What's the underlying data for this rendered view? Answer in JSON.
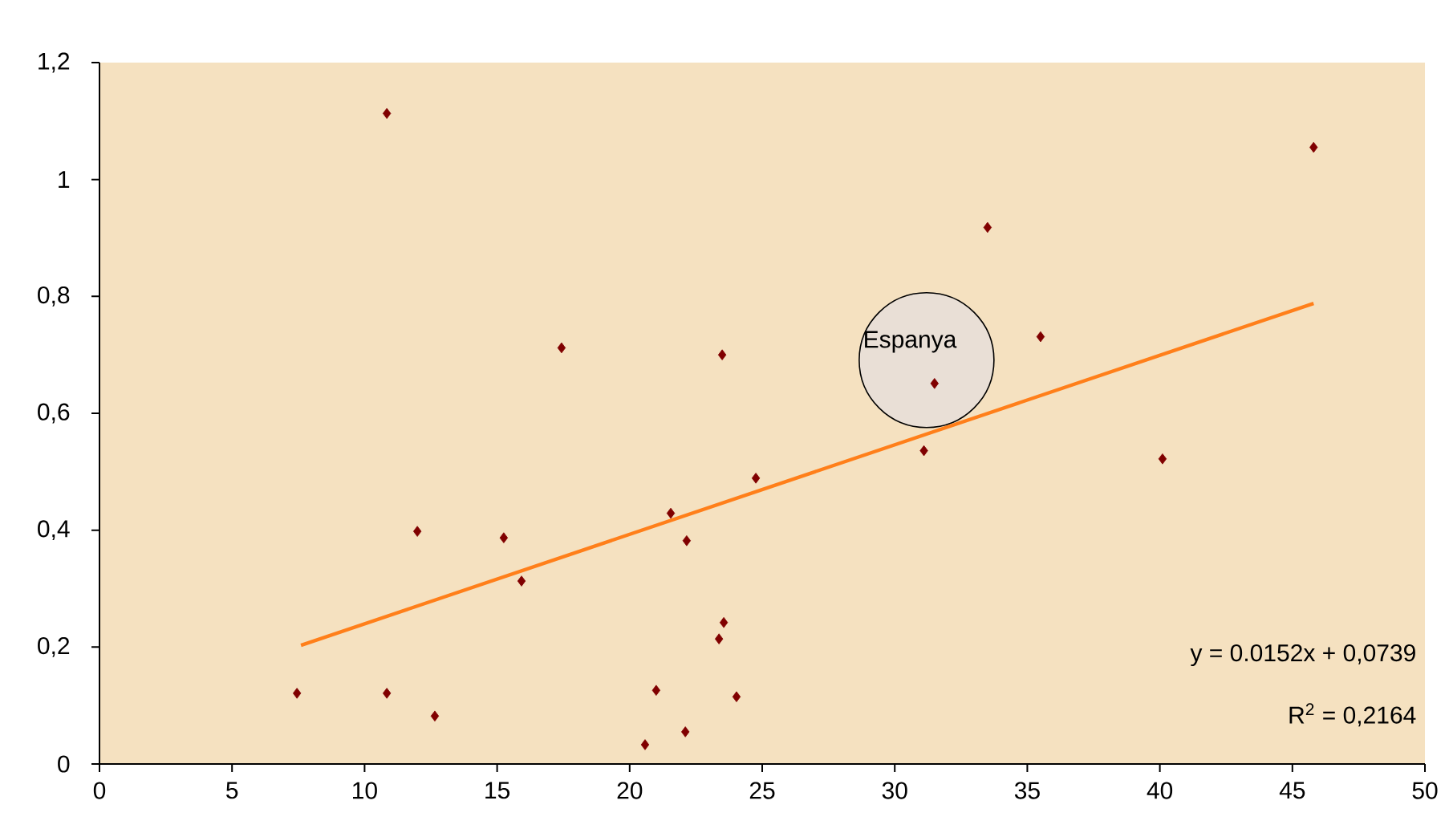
{
  "chart_data": {
    "type": "scatter",
    "xlim": [
      0,
      50
    ],
    "ylim": [
      0,
      1.2
    ],
    "xticks": [
      0,
      5,
      10,
      15,
      20,
      25,
      30,
      35,
      40,
      45,
      50
    ],
    "yticks": [
      {
        "value": 0,
        "label": "0"
      },
      {
        "value": 0.2,
        "label": "0,2"
      },
      {
        "value": 0.4,
        "label": "0,4"
      },
      {
        "value": 0.6,
        "label": "0,6"
      },
      {
        "value": 0.8,
        "label": "0,8"
      },
      {
        "value": 1,
        "label": "1"
      },
      {
        "value": 1.2,
        "label": "1,2"
      }
    ],
    "series": [
      {
        "color": "#800000",
        "marker": "diamond",
        "x": [
          7.45,
          10.84,
          10.84,
          11.99,
          12.65,
          15.25,
          15.92,
          17.43,
          20.58,
          21.0,
          21.55,
          22.1,
          22.15,
          23.37,
          23.55,
          23.49,
          24.03,
          24.76,
          31.1,
          31.5,
          33.5,
          35.5,
          40.1,
          45.8
        ],
        "values": [
          0.121,
          1.113,
          0.121,
          0.398,
          0.082,
          0.387,
          0.313,
          0.712,
          0.033,
          0.126,
          0.429,
          0.055,
          0.382,
          0.214,
          0.242,
          0.7,
          0.115,
          0.489,
          0.536,
          0.651,
          0.918,
          0.731,
          0.522,
          1.055
        ]
      },
      {
        "type": "line",
        "color": "#ff7f1a",
        "line_style": "solid",
        "x": [
          7.6,
          45.8
        ],
        "values": [
          0.203,
          0.788
        ]
      }
    ],
    "annotations": [
      {
        "text": "Espanya",
        "x": 31.5,
        "y": 0.651
      },
      "y = 0.0152x + 0,0739",
      "R$^{2}$ = 0,2164"
    ],
    "grid": false
  }
}
